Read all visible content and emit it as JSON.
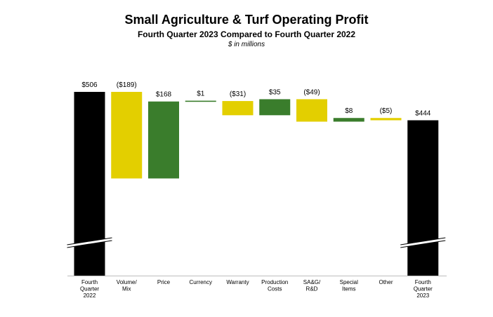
{
  "header": {
    "title": "Small Agriculture & Turf Operating Profit",
    "subtitle": "Fourth Quarter 2023 Compared to Fourth Quarter 2022",
    "note": "$ in millions"
  },
  "chart_data": {
    "type": "waterfall",
    "title": "Small Agriculture & Turf Operating Profit",
    "subtitle": "Fourth Quarter 2023 Compared to Fourth Quarter 2022",
    "unit_note": "$ in millions",
    "y_axis_broken": true,
    "colors": {
      "total": "#000000",
      "increase": "#3a7d2c",
      "decrease": "#e3cf00"
    },
    "steps": [
      {
        "category": [
          "Fourth",
          "Quarter",
          "2022"
        ],
        "kind": "total",
        "value": 506,
        "label": "$506"
      },
      {
        "category": [
          "Volume/",
          "Mix"
        ],
        "kind": "decrease",
        "value": -189,
        "label": "($189)"
      },
      {
        "category": [
          "Price"
        ],
        "kind": "increase",
        "value": 168,
        "label": "$168"
      },
      {
        "category": [
          "Currency"
        ],
        "kind": "increase",
        "value": 1,
        "label": "$1"
      },
      {
        "category": [
          "Warranty"
        ],
        "kind": "decrease",
        "value": -31,
        "label": "($31)"
      },
      {
        "category": [
          "Production",
          "Costs"
        ],
        "kind": "increase",
        "value": 35,
        "label": "$35"
      },
      {
        "category": [
          "SA&G/",
          "R&D"
        ],
        "kind": "decrease",
        "value": -49,
        "label": "($49)"
      },
      {
        "category": [
          "Special",
          "Items"
        ],
        "kind": "increase",
        "value": 8,
        "label": "$8"
      },
      {
        "category": [
          "Other"
        ],
        "kind": "decrease",
        "value": -5,
        "label": "($5)"
      },
      {
        "category": [
          "Fourth",
          "Quarter",
          "2023"
        ],
        "kind": "total",
        "value": 444,
        "label": "$444"
      }
    ]
  }
}
